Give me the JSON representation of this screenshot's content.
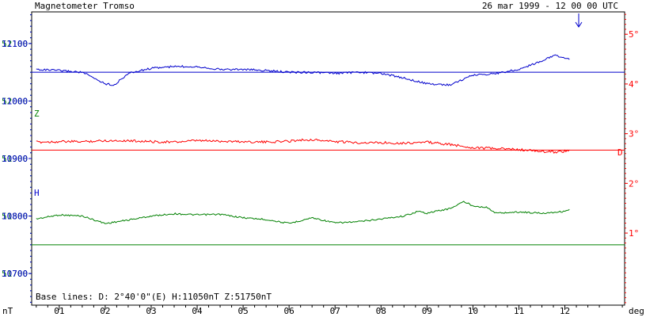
{
  "chart_data": {
    "type": "line",
    "title": "Magnetometer Tromso",
    "timestamp": "26 mar 1999 - 12 00 00 UTC",
    "x_axis": {
      "unit_label": "deg",
      "tick_labels": [
        "01",
        "02",
        "03",
        "04",
        "05",
        "06",
        "07",
        "08",
        "09",
        "10",
        "11",
        "12"
      ],
      "range_hours": [
        0.4,
        13.3
      ]
    },
    "left_axis": {
      "unit_label": "nT",
      "Z_ticks": [
        "52100",
        "52000",
        "51900",
        "51800",
        "51700"
      ],
      "Z_range_nT": [
        51645,
        52155
      ],
      "H_ticks": [
        "11100",
        "11000",
        "10900",
        "10800",
        "10700"
      ],
      "H_range_nT": [
        10645,
        11155
      ]
    },
    "right_axis": {
      "tick_labels": [
        "5°",
        "4°",
        "3°",
        "2°",
        "1°"
      ],
      "range_deg": [
        -0.45,
        5.45
      ]
    },
    "series": [
      {
        "name": "Z",
        "color": "#008000",
        "baseline": 51750,
        "x": [
          0.5,
          1,
          1.5,
          2,
          2.5,
          3,
          3.5,
          4,
          4.5,
          5,
          5.5,
          6,
          6.5,
          7,
          7.5,
          8,
          8.5,
          8.8,
          9,
          9.5,
          9.8,
          10,
          10.3,
          10.5,
          11,
          11.5,
          12,
          12.1
        ],
        "y": [
          51795,
          51802,
          51800,
          51787,
          51793,
          51800,
          51804,
          51802,
          51803,
          51797,
          51794,
          51787,
          51797,
          51788,
          51790,
          51795,
          51800,
          51808,
          51805,
          51813,
          51825,
          51818,
          51815,
          51805,
          51807,
          51805,
          51808,
          51812
        ]
      },
      {
        "name": "D",
        "color": "#ff0000",
        "baseline_deg": 2.67,
        "x": [
          0.5,
          1,
          1.5,
          2,
          2.5,
          3,
          3.5,
          4,
          4.5,
          5,
          5.5,
          6,
          6.2,
          6.5,
          7,
          7.5,
          8,
          8.5,
          9,
          9.5,
          10,
          10.5,
          11,
          11.5,
          11.8,
          12.1
        ],
        "y": [
          2.83,
          2.84,
          2.84,
          2.86,
          2.86,
          2.84,
          2.83,
          2.86,
          2.85,
          2.84,
          2.83,
          2.85,
          2.87,
          2.88,
          2.84,
          2.82,
          2.82,
          2.81,
          2.83,
          2.78,
          2.72,
          2.7,
          2.68,
          2.64,
          2.63,
          2.66
        ]
      },
      {
        "name": "H",
        "color": "#0000cc",
        "baseline": 11050,
        "x": [
          0.5,
          1,
          1.5,
          2,
          2.2,
          2.5,
          3,
          3.5,
          4,
          4.5,
          5,
          5.5,
          6,
          6.5,
          7,
          7.5,
          8,
          8.5,
          9,
          9.5,
          10,
          10.5,
          11,
          11.5,
          11.8,
          12.1
        ],
        "y": [
          11055,
          11053,
          11050,
          11030,
          11028,
          11048,
          11057,
          11060,
          11060,
          11055,
          11055,
          11053,
          11050,
          11050,
          11048,
          11050,
          11048,
          11040,
          11030,
          11028,
          11045,
          11048,
          11055,
          11070,
          11080,
          11072
        ]
      }
    ],
    "series_labels": {
      "Z": "Z",
      "D": "D",
      "H": "H"
    },
    "marker_label": "",
    "baseline_text": "Base lines:  D: 2°40'0\"(E)  H:11050nT  Z:51750nT"
  }
}
